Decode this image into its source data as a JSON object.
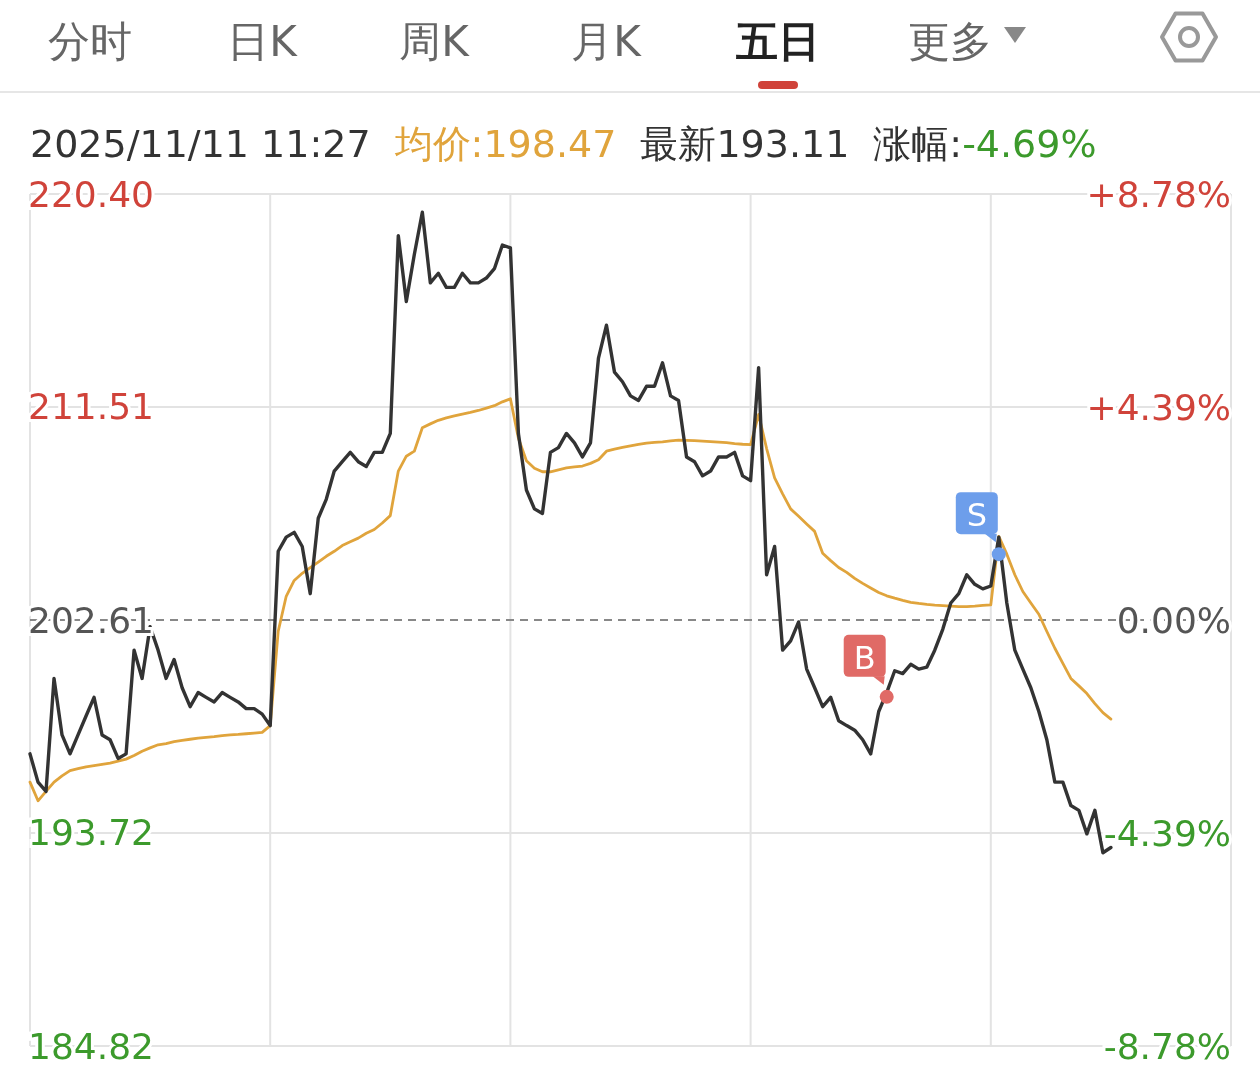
{
  "chart_data": {
    "type": "line",
    "title": "2025/11/11 11:27",
    "annotations": [
      "分时",
      "日K",
      "周K",
      "月K",
      "五日",
      "更多",
      "均价:198.47",
      "最新193.11",
      "涨幅:-4.69%"
    ],
    "categories": [
      null,
      null,
      null,
      null,
      null,
      null,
      null,
      null,
      null,
      null,
      null,
      null,
      null,
      null,
      null,
      null,
      null,
      null,
      null,
      null,
      null,
      null,
      null,
      null,
      null,
      null,
      null,
      null,
      null,
      null,
      null,
      null,
      null,
      null,
      null,
      null,
      null,
      null,
      null,
      null,
      null,
      null,
      null,
      null,
      null,
      null,
      null,
      null,
      null,
      null,
      null,
      null,
      null,
      null,
      null,
      null,
      null,
      null,
      null,
      null,
      null,
      null,
      null,
      null,
      null,
      null,
      null,
      null,
      null,
      null,
      null,
      null,
      null,
      null,
      null,
      null,
      null,
      null,
      null,
      null,
      null,
      null,
      null,
      null,
      null,
      null,
      null,
      null,
      null,
      null,
      null,
      null,
      null,
      null,
      null,
      null,
      null,
      null,
      null,
      null,
      null,
      null,
      null,
      null,
      null,
      null,
      null,
      null,
      null,
      null,
      null,
      null,
      null,
      null,
      null,
      null,
      null,
      null,
      null,
      null,
      null,
      null,
      null,
      null,
      null,
      null,
      null,
      null,
      null,
      null,
      null,
      null,
      null,
      null,
      null,
      null,
      null,
      null,
      null,
      null,
      null,
      null,
      null,
      null,
      null,
      null,
      null,
      null,
      null,
      null,
      null
    ],
    "ylim": [
      184.82,
      220.4
    ],
    "yticks": [
      {
        "value": 220.4,
        "label": "220.40"
      },
      {
        "value": 211.51,
        "label": "211.51"
      },
      {
        "value": 202.61,
        "label": "202.61"
      },
      {
        "value": 193.72,
        "label": "193.72"
      },
      {
        "value": 184.82,
        "label": "184.82"
      }
    ],
    "y2lim": [
      -8.78,
      8.78
    ],
    "y2ticks": [
      {
        "value": 8.78,
        "label": "+8.78%"
      },
      {
        "value": 4.39,
        "label": "+4.39%"
      },
      {
        "value": 0,
        "label": "0.00%"
      },
      {
        "value": -4.39,
        "label": "-4.39%"
      },
      {
        "value": -8.78,
        "label": "-8.78%"
      }
    ],
    "tick_labels": "y",
    "grid": true,
    "ref_lines": [
      {
        "axis": "y",
        "value": 202.61,
        "line_style": "dashed",
        "color": "#888888"
      }
    ],
    "series": [
      {
        "color": "#333333",
        "values": [
          197.02,
          195.84,
          195.45,
          200.17,
          197.81,
          197.02,
          197.81,
          198.6,
          199.38,
          197.81,
          197.61,
          196.83,
          197.02,
          201.35,
          200.17,
          202.33,
          201.35,
          200.17,
          200.96,
          199.78,
          198.99,
          199.58,
          199.38,
          199.19,
          199.58,
          199.38,
          199.19,
          198.91,
          198.91,
          198.68,
          198.2,
          205.48,
          206.07,
          206.27,
          205.68,
          203.71,
          206.86,
          207.65,
          208.83,
          209.22,
          209.61,
          209.22,
          209.02,
          209.61,
          209.61,
          210.4,
          218.66,
          215.91,
          217.87,
          219.64,
          216.69,
          217.09,
          216.5,
          216.5,
          217.09,
          216.69,
          216.69,
          216.89,
          217.28,
          218.27,
          218.15,
          210.4,
          208.04,
          207.25,
          207.06,
          209.61,
          209.81,
          210.4,
          210.01,
          209.42,
          210.01,
          213.55,
          214.92,
          212.96,
          212.56,
          211.97,
          211.78,
          212.37,
          212.37,
          213.35,
          211.97,
          211.78,
          209.42,
          209.22,
          208.63,
          208.83,
          209.42,
          209.42,
          209.61,
          208.63,
          208.43,
          213.15,
          204.5,
          205.68,
          201.35,
          201.74,
          202.53,
          200.56,
          199.78,
          198.99,
          199.38,
          198.4,
          198.2,
          198.01,
          197.61,
          197.02,
          198.79,
          199.58,
          200.49,
          200.37,
          200.76,
          200.56,
          200.64,
          201.35,
          202.22,
          203.32,
          203.71,
          204.5,
          204.1,
          203.91,
          204.03,
          206.07,
          203.32,
          201.35,
          200.56,
          199.78,
          198.79,
          197.61,
          195.84,
          195.84,
          194.86,
          194.66,
          193.68,
          194.66,
          192.89,
          193.11,
          null,
          null,
          null,
          null,
          null,
          null,
          null,
          null,
          null,
          null,
          null,
          null,
          null,
          null,
          null
        ]
      },
      {
        "color": "#e0a43c",
        "values": [
          195.84,
          195.06,
          195.45,
          195.84,
          196.1,
          196.32,
          196.4,
          196.48,
          196.53,
          196.58,
          196.63,
          196.72,
          196.8,
          196.95,
          197.13,
          197.27,
          197.4,
          197.45,
          197.53,
          197.58,
          197.63,
          197.68,
          197.71,
          197.74,
          197.78,
          197.81,
          197.83,
          197.86,
          197.89,
          197.92,
          198.2,
          202.14,
          203.6,
          204.26,
          204.56,
          204.8,
          205.03,
          205.27,
          205.48,
          205.72,
          205.88,
          206.03,
          206.23,
          206.39,
          206.66,
          206.97,
          208.83,
          209.45,
          209.66,
          210.64,
          210.8,
          210.95,
          211.05,
          211.13,
          211.21,
          211.28,
          211.36,
          211.46,
          211.56,
          211.72,
          211.85,
          210.2,
          209.26,
          208.95,
          208.8,
          208.8,
          208.88,
          208.96,
          209.0,
          209.04,
          209.15,
          209.3,
          209.66,
          209.75,
          209.82,
          209.88,
          209.94,
          210.0,
          210.03,
          210.05,
          210.09,
          210.12,
          210.11,
          210.1,
          210.08,
          210.06,
          210.04,
          210.02,
          209.98,
          209.95,
          209.93,
          211.19,
          209.77,
          208.55,
          207.88,
          207.25,
          206.94,
          206.62,
          206.31,
          205.4,
          205.09,
          204.8,
          204.6,
          204.35,
          204.14,
          203.95,
          203.76,
          203.62,
          203.52,
          203.43,
          203.35,
          203.3,
          203.26,
          203.23,
          203.21,
          203.19,
          203.17,
          203.17,
          203.19,
          203.22,
          203.24,
          206.1,
          205.36,
          204.5,
          203.8,
          203.32,
          202.85,
          202.13,
          201.43,
          200.8,
          200.17,
          199.86,
          199.54,
          199.12,
          198.74,
          198.47,
          null,
          null,
          null,
          null,
          null,
          null,
          null,
          null,
          null,
          null,
          null,
          null,
          null,
          null,
          null
        ]
      },
      {
        "type": "scatter",
        "name": "B",
        "color": "#e06a66",
        "values": [
          null,
          null,
          null,
          null,
          null,
          null,
          null,
          null,
          null,
          null,
          null,
          null,
          null,
          null,
          null,
          null,
          null,
          null,
          null,
          null,
          null,
          null,
          null,
          null,
          null,
          null,
          null,
          null,
          null,
          null,
          null,
          null,
          null,
          null,
          null,
          null,
          null,
          null,
          null,
          null,
          null,
          null,
          null,
          null,
          null,
          null,
          null,
          null,
          null,
          null,
          null,
          null,
          null,
          null,
          null,
          null,
          null,
          null,
          null,
          null,
          null,
          null,
          null,
          null,
          null,
          null,
          null,
          null,
          null,
          null,
          null,
          null,
          null,
          null,
          null,
          null,
          null,
          null,
          null,
          null,
          null,
          null,
          null,
          null,
          null,
          null,
          null,
          null,
          null,
          null,
          null,
          null,
          null,
          null,
          null,
          null,
          null,
          null,
          null,
          null,
          null,
          null,
          null,
          null,
          null,
          null,
          null,
          199.4,
          null,
          null,
          null,
          null,
          null,
          null,
          null,
          null,
          null,
          null,
          null,
          null,
          null,
          null,
          null,
          null,
          null,
          null,
          null,
          null,
          null,
          null,
          null,
          null,
          null,
          null,
          null,
          null,
          null,
          null,
          null,
          null,
          null,
          null,
          null,
          null,
          null,
          null,
          null,
          null,
          null,
          null,
          null
        ]
      },
      {
        "type": "scatter",
        "name": "S",
        "color": "#6d9eeb",
        "values": [
          null,
          null,
          null,
          null,
          null,
          null,
          null,
          null,
          null,
          null,
          null,
          null,
          null,
          null,
          null,
          null,
          null,
          null,
          null,
          null,
          null,
          null,
          null,
          null,
          null,
          null,
          null,
          null,
          null,
          null,
          null,
          null,
          null,
          null,
          null,
          null,
          null,
          null,
          null,
          null,
          null,
          null,
          null,
          null,
          null,
          null,
          null,
          null,
          null,
          null,
          null,
          null,
          null,
          null,
          null,
          null,
          null,
          null,
          null,
          null,
          null,
          null,
          null,
          null,
          null,
          null,
          null,
          null,
          null,
          null,
          null,
          null,
          null,
          null,
          null,
          null,
          null,
          null,
          null,
          null,
          null,
          null,
          null,
          null,
          null,
          null,
          null,
          null,
          null,
          null,
          null,
          null,
          null,
          null,
          null,
          null,
          null,
          null,
          null,
          null,
          null,
          null,
          null,
          null,
          null,
          null,
          null,
          null,
          null,
          null,
          null,
          null,
          null,
          null,
          null,
          null,
          null,
          null,
          null,
          null,
          null,
          205.36,
          null,
          null,
          null,
          null,
          null,
          null,
          null,
          null,
          null,
          null,
          null,
          null,
          null,
          null,
          null,
          null,
          null,
          null,
          null,
          null,
          null,
          null,
          null,
          null,
          null,
          null,
          null,
          null,
          null
        ]
      }
    ]
  }
}
